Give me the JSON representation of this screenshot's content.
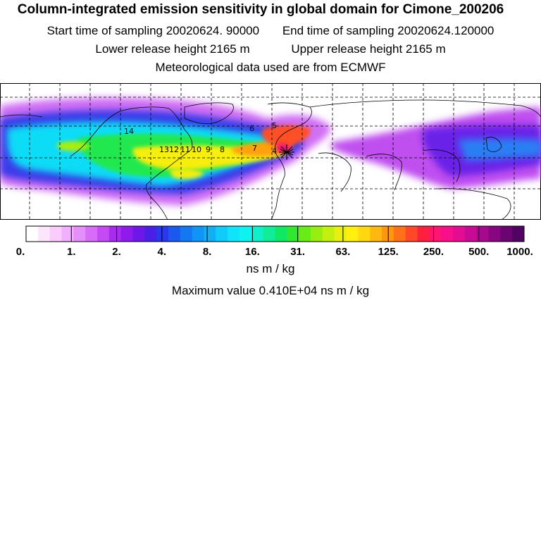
{
  "header": {
    "title": "Column-integrated emission sensitivity in global domain for Cimone_200206",
    "start_label": "Start time of sampling 20020624. 90000",
    "end_label": "End time of sampling 20020624.120000",
    "lower_release": "Lower release height 2165 m",
    "upper_release": "Upper release height 2165 m",
    "met_data": "Meteorological data used are from ECMWF"
  },
  "map": {
    "receptor_name": "Cimone",
    "trajectory_labels": [
      "14",
      "13",
      "12",
      "11",
      "10",
      "9",
      "8",
      "7",
      "6",
      "5",
      "4"
    ]
  },
  "colorbar": {
    "tick_labels": [
      "0.",
      "1.",
      "2.",
      "4.",
      "8.",
      "16.",
      "31.",
      "63.",
      "125.",
      "250.",
      "500.",
      "1000."
    ],
    "colors": [
      "#ffffff",
      "#fde6fd",
      "#f9ccfb",
      "#f1b0fb",
      "#e590fa",
      "#d66cf7",
      "#c44af4",
      "#aa2af0",
      "#8f1aec",
      "#6e18e8",
      "#4a20e8",
      "#2838ea",
      "#1a58ee",
      "#1478f2",
      "#1094f6",
      "#10b0f8",
      "#10ccfa",
      "#10e4fa",
      "#10f2f0",
      "#10f0c8",
      "#10ec98",
      "#10e864",
      "#30e830",
      "#68ec18",
      "#98ee10",
      "#c4f010",
      "#e8f010",
      "#fff010",
      "#ffd810",
      "#ffb810",
      "#ff9610",
      "#ff7018",
      "#ff4828",
      "#ff2040",
      "#ff1470",
      "#f8108a",
      "#e40c90",
      "#c80a94",
      "#a8088e",
      "#880680",
      "#6a0470",
      "#500360"
    ],
    "units": "ns m / kg",
    "max_value_text": "Maximum value  0.410E+04 ns m / kg"
  }
}
